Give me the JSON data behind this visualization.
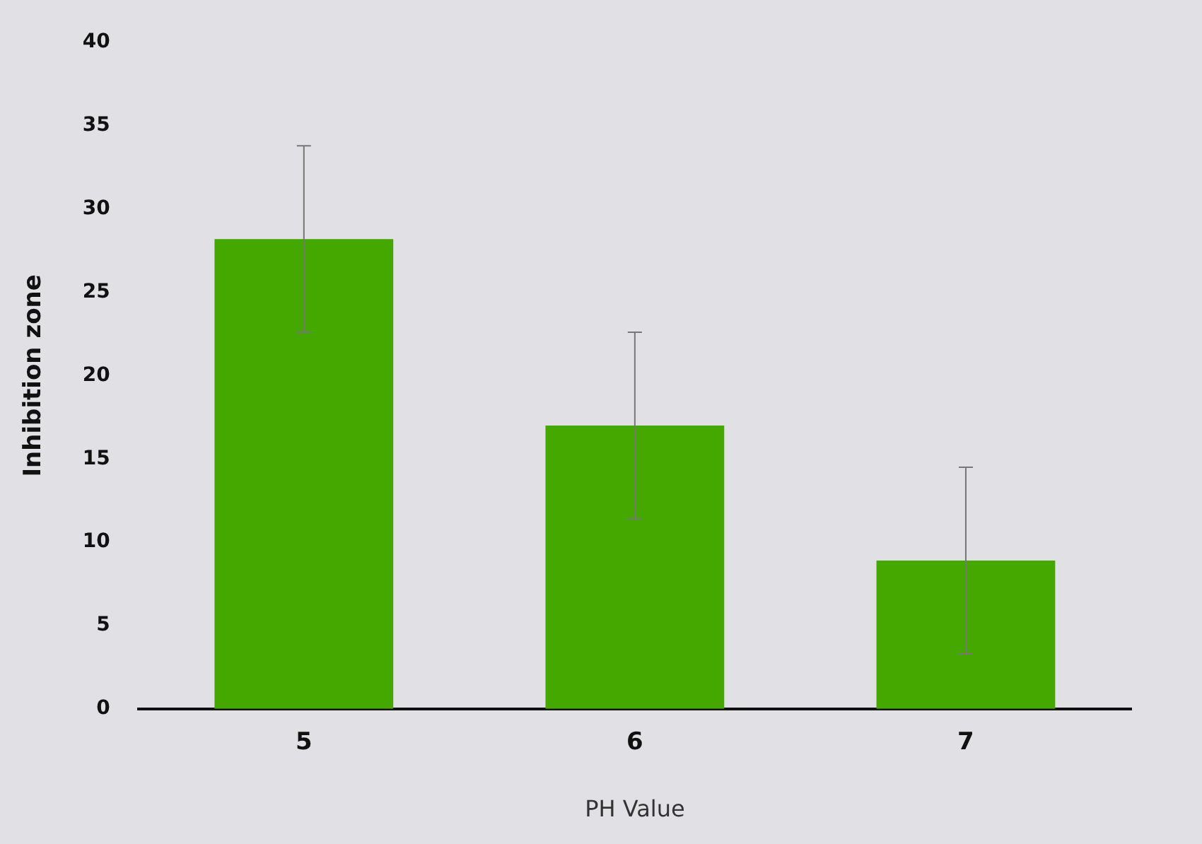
{
  "chart_data": {
    "type": "bar",
    "xlabel": "PH Value",
    "ylabel": "Inhibition zone",
    "categories": [
      "5",
      "6",
      "7"
    ],
    "values": [
      28.2,
      17.0,
      8.9
    ],
    "errors": [
      5.6,
      5.6,
      5.6
    ],
    "color": "#44a800",
    "ylim": [
      0,
      40
    ],
    "yticks": [
      0,
      5,
      10,
      15,
      20,
      25,
      30,
      35,
      40
    ],
    "grid": false
  }
}
